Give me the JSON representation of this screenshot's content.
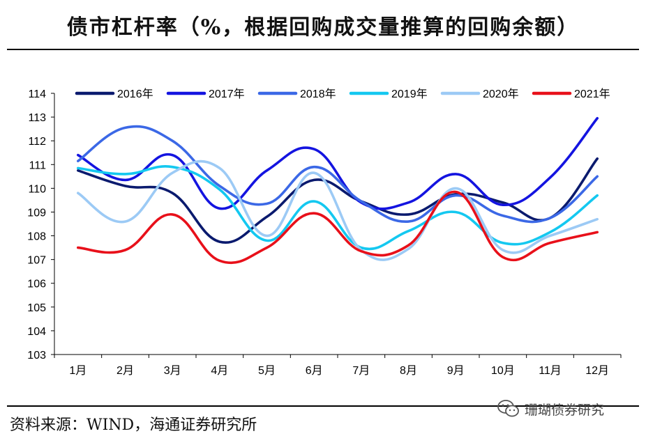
{
  "page": {
    "title": "债市杠杆率（%，根据回购成交量推算的回购余额）",
    "source": "资料来源：WIND，海通证券研究所",
    "watermark": "珊瑚债券研究",
    "watermark_icon": "wechat-icon"
  },
  "chart_data": {
    "type": "line",
    "title": "债市杠杆率（%，根据回购成交量推算的回购余额）",
    "xlabel": "",
    "ylabel": "",
    "categories": [
      "1月",
      "2月",
      "3月",
      "4月",
      "5月",
      "6月",
      "7月",
      "8月",
      "9月",
      "10月",
      "11月",
      "12月"
    ],
    "ylim": [
      103,
      114
    ],
    "yticks": [
      "103",
      "104",
      "105",
      "106",
      "107",
      "108",
      "109",
      "110",
      "111",
      "112",
      "113",
      "114"
    ],
    "grid": false,
    "legend_position": "top",
    "series": [
      {
        "name": "2016年",
        "color": "#0a1a6e",
        "values": [
          110.75,
          110.1,
          109.8,
          107.75,
          108.8,
          110.35,
          109.45,
          108.9,
          109.75,
          109.4,
          108.75,
          111.25
        ]
      },
      {
        "name": "2017年",
        "color": "#1414e0",
        "values": [
          111.4,
          110.35,
          111.4,
          109.15,
          110.75,
          111.65,
          109.4,
          109.4,
          110.6,
          109.3,
          110.45,
          112.95
        ]
      },
      {
        "name": "2018年",
        "color": "#3b68e6",
        "values": [
          111.15,
          112.55,
          112.0,
          110.1,
          109.35,
          110.9,
          109.45,
          108.6,
          109.7,
          108.85,
          108.75,
          110.5
        ]
      },
      {
        "name": "2019年",
        "color": "#14c8f0",
        "values": [
          110.85,
          110.6,
          110.9,
          109.95,
          107.8,
          109.45,
          107.5,
          108.2,
          109.0,
          107.7,
          108.15,
          109.7
        ]
      },
      {
        "name": "2020年",
        "color": "#9ccaf5",
        "values": [
          109.8,
          108.6,
          110.65,
          110.85,
          108.0,
          110.65,
          107.4,
          107.45,
          110.0,
          107.4,
          108.0,
          108.7
        ]
      },
      {
        "name": "2021年",
        "color": "#e8101a",
        "values": [
          107.5,
          107.4,
          108.9,
          106.95,
          107.5,
          108.95,
          107.35,
          107.6,
          109.85,
          107.1,
          107.7,
          108.15
        ]
      }
    ]
  }
}
